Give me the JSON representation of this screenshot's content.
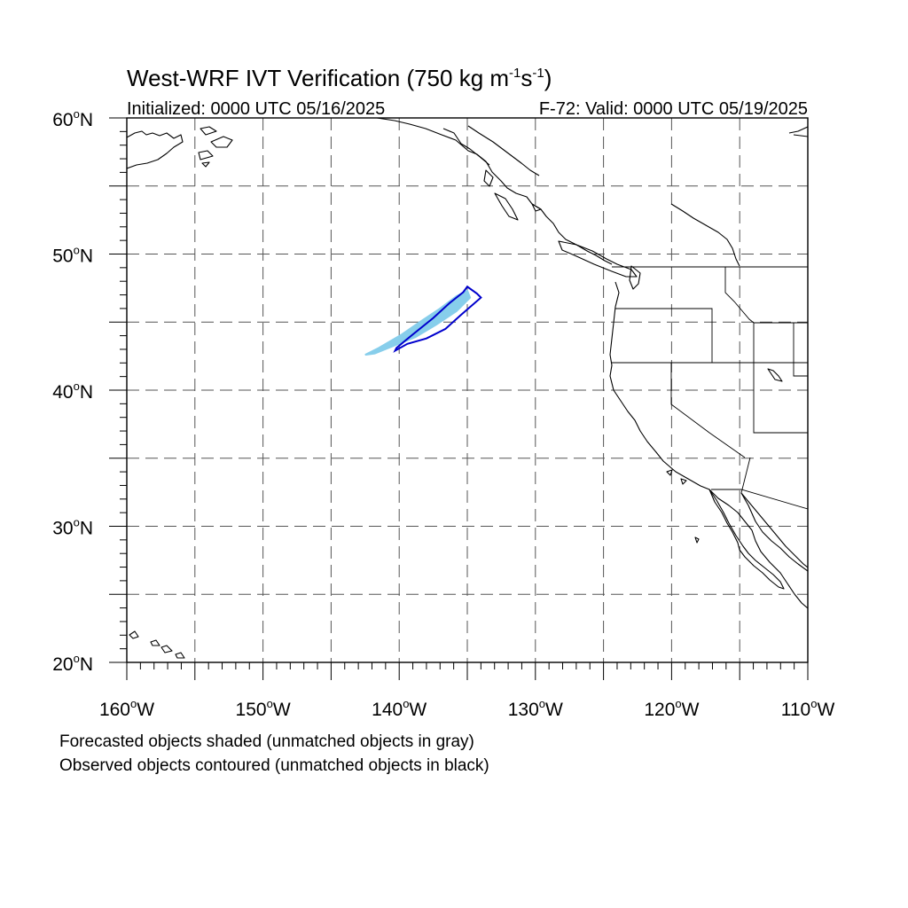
{
  "title": {
    "main": "West-WRF IVT Verification (750 kg m",
    "exp1": "-1",
    "mid": "s",
    "exp2": "-1",
    "end": ")"
  },
  "subtitle_left": "Initialized: 0000 UTC 05/16/2025",
  "subtitle_right": "F-72: Valid: 0000 UTC 05/19/2025",
  "map": {
    "lon_range": [
      -160,
      -110
    ],
    "lat_range": [
      20,
      60
    ],
    "lat_labels": [
      {
        "lat": 60,
        "label": "60"
      },
      {
        "lat": 50,
        "label": "50"
      },
      {
        "lat": 40,
        "label": "40"
      },
      {
        "lat": 30,
        "label": "30"
      },
      {
        "lat": 20,
        "label": "20"
      }
    ],
    "lat_suffix": "N",
    "lon_labels": [
      {
        "lon": -160,
        "label": "160"
      },
      {
        "lon": -150,
        "label": "150"
      },
      {
        "lon": -140,
        "label": "140"
      },
      {
        "lon": -130,
        "label": "130"
      },
      {
        "lon": -120,
        "label": "120"
      },
      {
        "lon": -110,
        "label": "110"
      }
    ],
    "lon_suffix": "W",
    "degree_symbol": "o",
    "grid_style": "dashed",
    "colors": {
      "forecast_fill": "#87CEEB",
      "observed_contour": "#0000CD",
      "coastline": "#000000",
      "grid": "#555555"
    }
  },
  "forecast_object": {
    "label": "forecast object (shaded)",
    "points": [
      [
        -142.5,
        42.6
      ],
      [
        -141.5,
        43.1
      ],
      [
        -139.8,
        44.1
      ],
      [
        -138.5,
        45.0
      ],
      [
        -137.0,
        46.0
      ],
      [
        -135.8,
        46.9
      ],
      [
        -135.0,
        47.3
      ],
      [
        -134.8,
        46.8
      ],
      [
        -135.8,
        45.8
      ],
      [
        -137.3,
        44.8
      ],
      [
        -138.8,
        43.9
      ],
      [
        -140.3,
        43.3
      ],
      [
        -141.8,
        42.7
      ]
    ]
  },
  "observed_object": {
    "label": "observed object (contoured)",
    "points": [
      [
        -140.2,
        43.1
      ],
      [
        -139.0,
        44.1
      ],
      [
        -137.5,
        45.3
      ],
      [
        -136.3,
        46.4
      ],
      [
        -135.3,
        47.2
      ],
      [
        -135.0,
        47.6
      ],
      [
        -134.3,
        47.1
      ],
      [
        -134.0,
        46.8
      ],
      [
        -135.5,
        45.5
      ],
      [
        -136.6,
        44.5
      ],
      [
        -138.0,
        43.8
      ],
      [
        -139.4,
        43.4
      ],
      [
        -140.3,
        42.9
      ]
    ]
  },
  "legend": {
    "line1": "Forecasted objects shaded (unmatched objects in gray)",
    "line2": "Observed objects contoured (unmatched objects in black)"
  }
}
